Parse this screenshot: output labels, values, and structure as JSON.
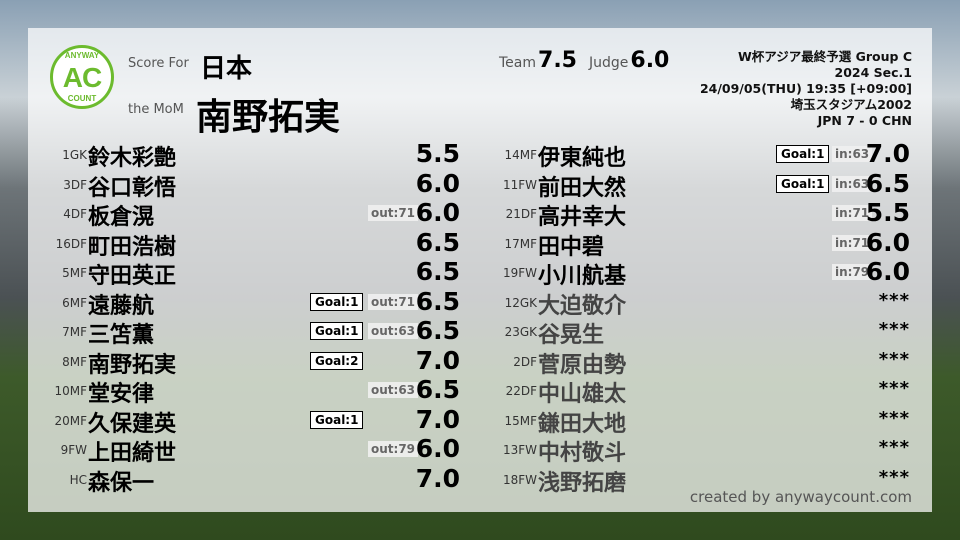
{
  "header": {
    "score_for_label": "Score For",
    "mom_label": "the MoM",
    "team": "日本",
    "mom": "南野拓実",
    "team_score_label": "Team",
    "team_score": "7.5",
    "judge_label": "Judge",
    "judge_score": "6.0"
  },
  "logo": {
    "top": "ANYWAY",
    "center": "AC",
    "bottom": "COUNT",
    "color": "#6cbb2e"
  },
  "match": {
    "competition": "W杯アジア最終予選 Group C",
    "section": "2024 Sec.1",
    "datetime": "24/09/05(THU) 19:35 [+09:00]",
    "venue": "埼玉スタジアム2002",
    "result": "JPN 7 - 0 CHN"
  },
  "left": [
    {
      "pos": "1GK",
      "name": "鈴木彩艶",
      "goal": "",
      "io": "",
      "rating": "5.5"
    },
    {
      "pos": "3DF",
      "name": "谷口彰悟",
      "goal": "",
      "io": "",
      "rating": "6.0"
    },
    {
      "pos": "4DF",
      "name": "板倉滉",
      "goal": "",
      "io": "out:71",
      "rating": "6.0"
    },
    {
      "pos": "16DF",
      "name": "町田浩樹",
      "goal": "",
      "io": "",
      "rating": "6.5"
    },
    {
      "pos": "5MF",
      "name": "守田英正",
      "goal": "",
      "io": "",
      "rating": "6.5"
    },
    {
      "pos": "6MF",
      "name": "遠藤航",
      "goal": "Goal:1",
      "io": "out:71",
      "rating": "6.5"
    },
    {
      "pos": "7MF",
      "name": "三笘薫",
      "goal": "Goal:1",
      "io": "out:63",
      "rating": "6.5"
    },
    {
      "pos": "8MF",
      "name": "南野拓実",
      "goal": "Goal:2",
      "io": "",
      "rating": "7.0"
    },
    {
      "pos": "10MF",
      "name": "堂安律",
      "goal": "",
      "io": "out:63",
      "rating": "6.5"
    },
    {
      "pos": "20MF",
      "name": "久保建英",
      "goal": "Goal:1",
      "io": "",
      "rating": "7.0"
    },
    {
      "pos": "9FW",
      "name": "上田綺世",
      "goal": "",
      "io": "out:79",
      "rating": "6.0"
    },
    {
      "pos": "HC",
      "name": "森保一",
      "goal": "",
      "io": "",
      "rating": "7.0"
    }
  ],
  "right": [
    {
      "pos": "14MF",
      "name": "伊東純也",
      "goal": "Goal:1",
      "io": "in:63",
      "rating": "7.0"
    },
    {
      "pos": "11FW",
      "name": "前田大然",
      "goal": "Goal:1",
      "io": "in:63",
      "rating": "6.5"
    },
    {
      "pos": "21DF",
      "name": "高井幸大",
      "goal": "",
      "io": "in:71",
      "rating": "5.5"
    },
    {
      "pos": "17MF",
      "name": "田中碧",
      "goal": "",
      "io": "in:71",
      "rating": "6.0"
    },
    {
      "pos": "19FW",
      "name": "小川航基",
      "goal": "",
      "io": "in:79",
      "rating": "6.0"
    },
    {
      "pos": "12GK",
      "name": "大迫敬介",
      "goal": "",
      "io": "",
      "rating": "***"
    },
    {
      "pos": "23GK",
      "name": "谷晃生",
      "goal": "",
      "io": "",
      "rating": "***"
    },
    {
      "pos": "2DF",
      "name": "菅原由勢",
      "goal": "",
      "io": "",
      "rating": "***"
    },
    {
      "pos": "22DF",
      "name": "中山雄太",
      "goal": "",
      "io": "",
      "rating": "***"
    },
    {
      "pos": "15MF",
      "name": "鎌田大地",
      "goal": "",
      "io": "",
      "rating": "***"
    },
    {
      "pos": "13FW",
      "name": "中村敬斗",
      "goal": "",
      "io": "",
      "rating": "***"
    },
    {
      "pos": "18FW",
      "name": "浅野拓磨",
      "goal": "",
      "io": "",
      "rating": "***"
    }
  ],
  "footer": {
    "credit": "created by anywaycount.com"
  }
}
